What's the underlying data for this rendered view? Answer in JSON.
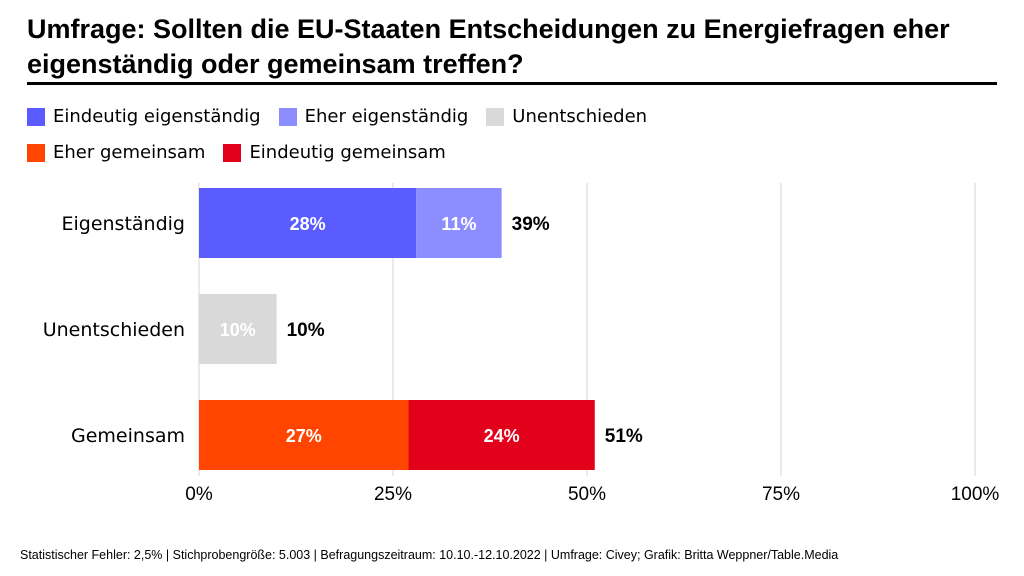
{
  "title": "Umfrage: Sollten die EU-Staaten Entscheidungen zu Energiefragen eher eigenständig oder gemeinsam treffen?",
  "footer": "Statistischer Fehler: 2,5% | Stichprobengröße: 5.003 | Befragungszeitraum: 10.10.-12.10.2022 | Umfrage: Civey; Grafik: Britta Weppner/Table.Media",
  "chart_data": {
    "type": "bar",
    "orientation": "horizontal",
    "stacked": true,
    "categories": [
      "Eigenständig",
      "Unentschieden",
      "Gemeinsam"
    ],
    "series": [
      {
        "name": "Eindeutig eigenständig",
        "color": "#5a5cff",
        "values": [
          28,
          0,
          0
        ]
      },
      {
        "name": "Eher eigenständig",
        "color": "#8c8dff",
        "values": [
          11,
          0,
          0
        ]
      },
      {
        "name": "Unentschieden",
        "color": "#d9d9d9",
        "values": [
          0,
          10,
          0
        ]
      },
      {
        "name": "Eher gemeinsam",
        "color": "#ff4500",
        "values": [
          0,
          0,
          27
        ]
      },
      {
        "name": "Eindeutig gemeinsam",
        "color": "#e2001a",
        "values": [
          0,
          0,
          24
        ]
      }
    ],
    "totals": [
      "39%",
      "10%",
      "51%"
    ],
    "xlim": [
      0,
      100
    ],
    "xticks": [
      "0%",
      "25%",
      "50%",
      "75%",
      "100%"
    ],
    "grid": true,
    "legend": "top"
  }
}
